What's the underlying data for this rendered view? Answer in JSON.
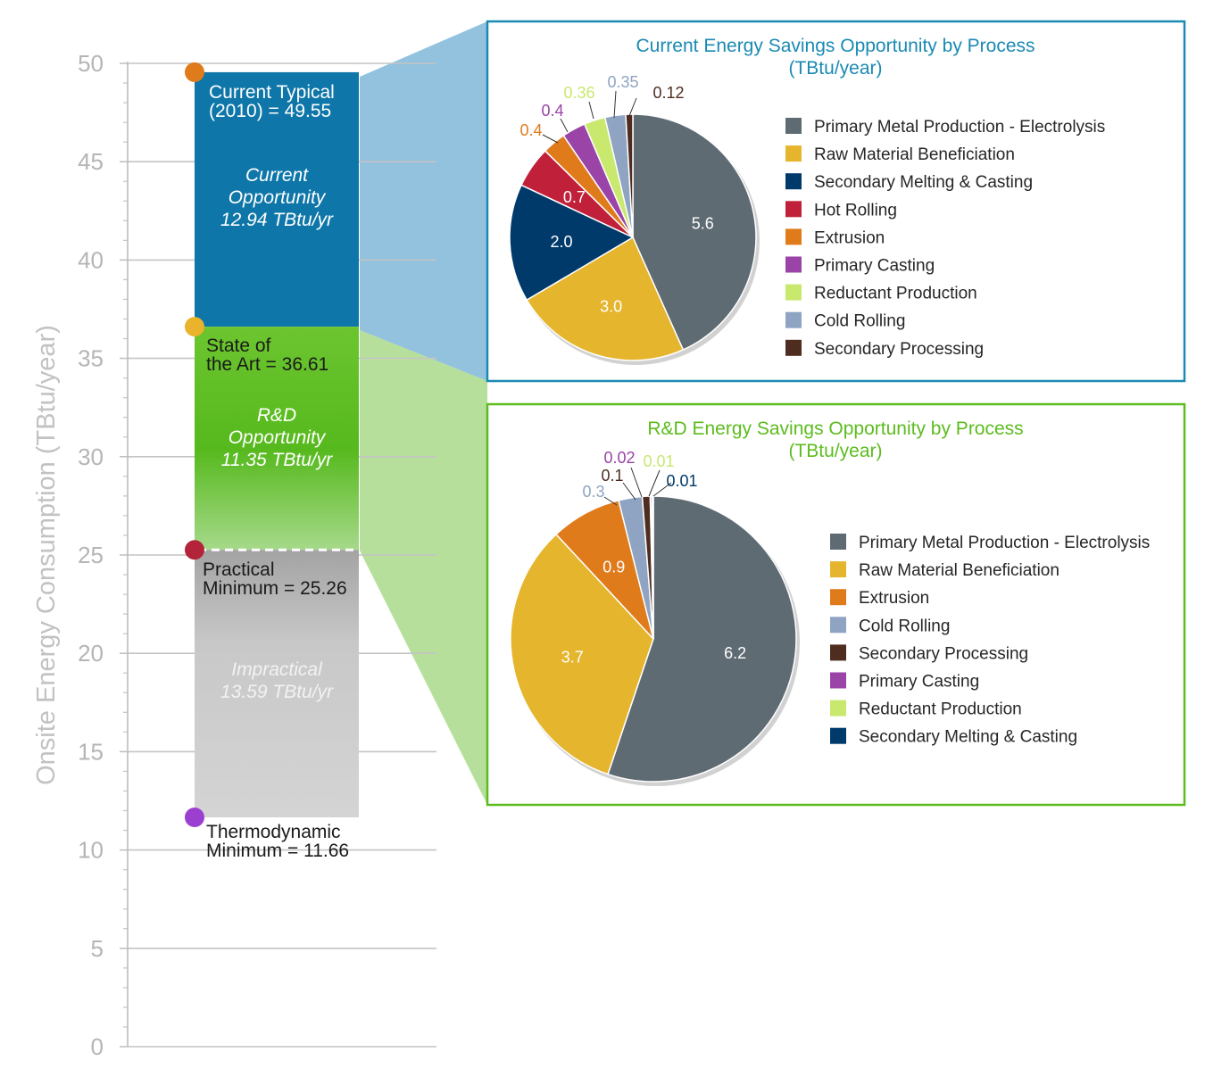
{
  "chart_data": [
    {
      "type": "bar",
      "ylabel": "Onsite Energy Consumption (TBtu/year)",
      "ylim": [
        0,
        50
      ],
      "yticks": [
        "0",
        "5",
        "10",
        "15",
        "20",
        "25",
        "30",
        "35",
        "40",
        "45",
        "50"
      ],
      "grid": true,
      "levels": [
        {
          "name": "current-typical",
          "lines": [
            "Current Typical",
            "(2010) = 49.55"
          ],
          "value": 49.55,
          "color": "#e07b1c"
        },
        {
          "name": "state-of-the-art",
          "lines": [
            "State of",
            "the Art = 36.61"
          ],
          "value": 36.61,
          "color": "#e9b32c"
        },
        {
          "name": "practical-minimum",
          "lines": [
            "Practical",
            "Minimum = 25.26"
          ],
          "value": 25.26,
          "color": "#b3243a"
        },
        {
          "name": "thermodynamic-minimum",
          "lines": [
            "Thermodynamic",
            "Minimum = 11.66"
          ],
          "value": 11.66,
          "color": "#9b3fd0"
        }
      ],
      "segments": [
        {
          "name": "current-opportunity",
          "lines": [
            "Current",
            "Opportunity",
            "12.94 TBtu/yr"
          ],
          "value": 12.94,
          "from": 36.61,
          "to": 49.55,
          "color": "#0e76a8"
        },
        {
          "name": "rd-opportunity",
          "lines": [
            "R&D",
            "Opportunity",
            "11.35 TBtu/yr"
          ],
          "value": 11.35,
          "from": 25.26,
          "to": 36.61,
          "color": "#5cbc1e"
        },
        {
          "name": "impractical",
          "lines": [
            "Impractical",
            "13.59 TBtu/yr"
          ],
          "value": 13.59,
          "from": 11.66,
          "to": 25.26,
          "color": "#c8c8c8"
        }
      ]
    },
    {
      "type": "pie",
      "title": "Current Energy Savings Opportunity by Process",
      "subtitle": "(TBtu/year)",
      "accent": "#1a8ab3",
      "slices": [
        {
          "label": "Primary Metal Production - Electrolysis",
          "value": 5.6,
          "display": "5.6",
          "color": "#5f6b73"
        },
        {
          "label": "Raw Material Beneficiation",
          "value": 3.0,
          "display": "3.0",
          "color": "#e6b52e"
        },
        {
          "label": "Secondary Melting & Casting",
          "value": 2.0,
          "display": "2.0",
          "color": "#003a6b"
        },
        {
          "label": "Hot Rolling",
          "value": 0.7,
          "display": "0.7",
          "color": "#c0203a"
        },
        {
          "label": "Extrusion",
          "value": 0.4,
          "display": "0.4",
          "color": "#e07b1c"
        },
        {
          "label": "Primary Casting",
          "value": 0.4,
          "display": "0.4",
          "color": "#9a44a8"
        },
        {
          "label": "Reductant Production",
          "value": 0.36,
          "display": "0.36",
          "color": "#c9e86e"
        },
        {
          "label": "Cold Rolling",
          "value": 0.35,
          "display": "0.35",
          "color": "#8ea4c2"
        },
        {
          "label": "Secondary Processing",
          "value": 0.12,
          "display": "0.12",
          "color": "#4e2d20"
        }
      ]
    },
    {
      "type": "pie",
      "title": "R&D Energy Savings Opportunity by Process",
      "subtitle": "(TBtu/year)",
      "accent": "#5cbc1e",
      "slices": [
        {
          "label": "Primary Metal Production - Electrolysis",
          "value": 6.2,
          "display": "6.2",
          "color": "#5f6b73"
        },
        {
          "label": "Raw Material Beneficiation",
          "value": 3.7,
          "display": "3.7",
          "color": "#e6b52e"
        },
        {
          "label": "Extrusion",
          "value": 0.9,
          "display": "0.9",
          "color": "#e07b1c"
        },
        {
          "label": "Cold Rolling",
          "value": 0.3,
          "display": "0.3",
          "color": "#8ea4c2"
        },
        {
          "label": "Secondary Processing",
          "value": 0.1,
          "display": "0.1",
          "color": "#4e2d20"
        },
        {
          "label": "Primary Casting",
          "value": 0.02,
          "display": "0.02",
          "color": "#9a44a8"
        },
        {
          "label": "Reductant Production",
          "value": 0.01,
          "display": "0.01",
          "color": "#c9e86e"
        },
        {
          "label": "Secondary Melting & Casting",
          "value": 0.01,
          "display": "0.01",
          "color": "#003a6b"
        }
      ]
    }
  ]
}
